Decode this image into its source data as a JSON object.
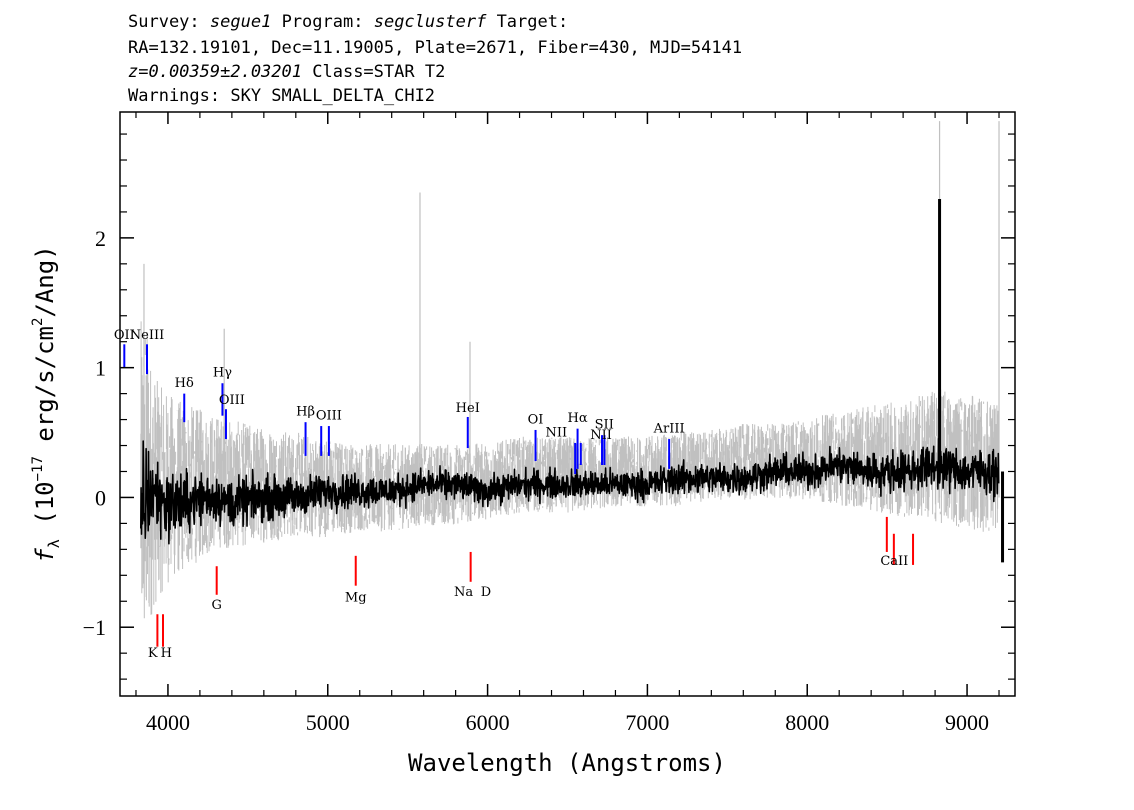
{
  "header": {
    "survey_label": "Survey:",
    "survey": "segue1",
    "program_label": "Program:",
    "program": "segclusterf",
    "target_label": "Target:",
    "line2": "RA=132.19101, Dec=11.19005, Plate=2671, Fiber=430, MJD=54141",
    "redshift": "z=0.00359±2.03201",
    "class": "Class=STAR T2",
    "warnings": "Warnings: SKY SMALL_DELTA_CHI2"
  },
  "chart_data": {
    "type": "line",
    "xlabel": "Wavelength (Angstroms)",
    "ylabel": "f_λ (10^-17 erg/s/cm^2/Ang)",
    "xlim": [
      3700,
      9300
    ],
    "ylim": [
      -1.53,
      2.97
    ],
    "xticks": [
      4000,
      5000,
      6000,
      7000,
      8000,
      9000
    ],
    "yticks": [
      -1,
      0,
      1,
      2
    ],
    "xtick_labels": [
      "4000",
      "5000",
      "6000",
      "7000",
      "8000",
      "9000"
    ],
    "ytick_labels": [
      "−1",
      "0",
      "1",
      "2"
    ],
    "series": [
      {
        "role": "error band",
        "color": "#c0c0c0",
        "x": [
          3830,
          3860,
          3900,
          3950,
          4000,
          4100,
          4200,
          4300,
          4400,
          4600,
          4800,
          5000,
          5200,
          5400,
          5600,
          5800,
          6000,
          6200,
          6400,
          6600,
          6800,
          7000,
          7200,
          7400,
          7600,
          7800,
          8000,
          8200,
          8400,
          8600,
          8800,
          9000,
          9200
        ],
        "y_low": [
          -1.3,
          -1.4,
          -1.0,
          -0.85,
          -0.75,
          -0.65,
          -0.55,
          -0.45,
          -0.45,
          -0.4,
          -0.35,
          -0.35,
          -0.3,
          -0.3,
          -0.25,
          -0.25,
          -0.2,
          -0.15,
          -0.15,
          -0.15,
          -0.1,
          -0.1,
          -0.1,
          -0.05,
          -0.05,
          -0.05,
          -0.05,
          -0.1,
          -0.15,
          -0.2,
          -0.25,
          -0.3,
          -0.35
        ],
        "y_high": [
          1.5,
          1.6,
          1.1,
          0.95,
          0.9,
          0.8,
          0.75,
          0.7,
          0.65,
          0.6,
          0.55,
          0.5,
          0.45,
          0.45,
          0.45,
          0.45,
          0.45,
          0.5,
          0.5,
          0.5,
          0.5,
          0.5,
          0.55,
          0.55,
          0.6,
          0.6,
          0.65,
          0.7,
          0.75,
          0.8,
          0.9,
          0.85,
          0.8
        ]
      },
      {
        "role": "flux",
        "color": "#000000",
        "x": [
          3830,
          3860,
          3900,
          3950,
          4000,
          4100,
          4200,
          4300,
          4400,
          4600,
          4800,
          5000,
          5200,
          5400,
          5600,
          5800,
          6000,
          6200,
          6400,
          6600,
          6800,
          7000,
          7200,
          7400,
          7600,
          7800,
          8000,
          8200,
          8400,
          8600,
          8800,
          9000,
          9200
        ],
        "y": [
          -0.1,
          0.0,
          0.05,
          0.0,
          -0.05,
          -0.05,
          0.0,
          0.0,
          -0.05,
          0.0,
          0.0,
          0.05,
          0.05,
          0.05,
          0.1,
          0.1,
          0.05,
          0.1,
          0.1,
          0.1,
          0.1,
          0.1,
          0.15,
          0.15,
          0.15,
          0.2,
          0.2,
          0.25,
          0.2,
          0.2,
          0.25,
          0.2,
          0.2
        ],
        "noise": [
          0.45,
          0.55,
          0.35,
          0.3,
          0.3,
          0.25,
          0.22,
          0.2,
          0.2,
          0.18,
          0.16,
          0.15,
          0.14,
          0.13,
          0.12,
          0.12,
          0.12,
          0.12,
          0.12,
          0.12,
          0.12,
          0.12,
          0.13,
          0.13,
          0.13,
          0.13,
          0.14,
          0.15,
          0.16,
          0.17,
          0.18,
          0.18,
          0.2
        ]
      }
    ],
    "spikes": [
      {
        "x": 3850,
        "y": 1.8,
        "series": "error band"
      },
      {
        "x": 4352,
        "y": 1.3,
        "series": "error band"
      },
      {
        "x": 5577,
        "y": 2.35,
        "series": "error band"
      },
      {
        "x": 5890,
        "y": 1.2,
        "series": "error band"
      },
      {
        "x": 8828,
        "y": 2.9,
        "series": "error band"
      },
      {
        "x": 9200,
        "y": 2.9,
        "series": "error band"
      },
      {
        "x": 8828,
        "y": 2.3,
        "series": "flux"
      },
      {
        "x": 9222,
        "y": -0.5,
        "series": "flux"
      }
    ],
    "emission_lines": [
      {
        "label": "OII",
        "x": 3727,
        "y_bottom": 1.0,
        "y_top": 1.18
      },
      {
        "label": "NeIII",
        "x": 3869,
        "y_bottom": 0.95,
        "y_top": 1.18
      },
      {
        "label": "Hδ",
        "x": 4102,
        "y_bottom": 0.58,
        "y_top": 0.8
      },
      {
        "label": "Hγ",
        "x": 4341,
        "y_bottom": 0.63,
        "y_top": 0.88
      },
      {
        "label": "OIII",
        "x": 4363,
        "y_bottom": 0.45,
        "y_top": 0.68
      },
      {
        "label": "Hβ",
        "x": 4861,
        "y_bottom": 0.32,
        "y_top": 0.58
      },
      {
        "label": "OIII",
        "x": 4959,
        "y_bottom": 0.32,
        "y_top": 0.55
      },
      {
        "label": "OIII",
        "x": 5007,
        "y_bottom": 0.32,
        "y_top": 0.55
      },
      {
        "label": "HeI",
        "x": 5876,
        "y_bottom": 0.38,
        "y_top": 0.62
      },
      {
        "label": "OI",
        "x": 6300,
        "y_bottom": 0.28,
        "y_top": 0.52
      },
      {
        "label": "NII",
        "x": 6548,
        "y_bottom": 0.18,
        "y_top": 0.42
      },
      {
        "label": "Hα",
        "x": 6563,
        "y_bottom": 0.22,
        "y_top": 0.53
      },
      {
        "label": "NII",
        "x": 6583,
        "y_bottom": 0.25,
        "y_top": 0.42
      },
      {
        "label": "SII",
        "x": 6716,
        "y_bottom": 0.25,
        "y_top": 0.48
      },
      {
        "label": "SII",
        "x": 6731,
        "y_bottom": 0.25,
        "y_top": 0.48
      },
      {
        "label": "ArIII",
        "x": 7136,
        "y_bottom": 0.22,
        "y_top": 0.45
      }
    ],
    "absorption_lines": [
      {
        "label": "K",
        "x": 3934,
        "y_bottom": -1.15,
        "y_top": -0.9
      },
      {
        "label": "H",
        "x": 3969,
        "y_bottom": -1.15,
        "y_top": -0.9
      },
      {
        "label": "G",
        "x": 4305,
        "y_bottom": -0.75,
        "y_top": -0.53
      },
      {
        "label": "Mg",
        "x": 5175,
        "y_bottom": -0.68,
        "y_top": -0.45
      },
      {
        "label": "Na",
        "x": 5894,
        "y_bottom": -0.65,
        "y_top": -0.42
      },
      {
        "label": "CaII",
        "x": 8498,
        "y_bottom": -0.42,
        "y_top": -0.15
      },
      {
        "label": "CaII",
        "x": 8542,
        "y_bottom": -0.52,
        "y_top": -0.28
      },
      {
        "label": "CaII",
        "x": 8662,
        "y_bottom": -0.52,
        "y_top": -0.28
      }
    ],
    "line_labels_printed": [
      {
        "text": "OII",
        "x": 3727,
        "y": 1.22
      },
      {
        "text": "NeIII",
        "x": 3869,
        "y": 1.22
      },
      {
        "text": "Hδ",
        "x": 4102,
        "y": 0.85
      },
      {
        "text": "Hγ",
        "x": 4341,
        "y": 0.93
      },
      {
        "text": "OIII",
        "x": 4400,
        "y": 0.72
      },
      {
        "text": "Hβ",
        "x": 4861,
        "y": 0.63
      },
      {
        "text": "OIII",
        "x": 5007,
        "y": 0.6
      },
      {
        "text": "HeI",
        "x": 5876,
        "y": 0.66
      },
      {
        "text": "OI",
        "x": 6300,
        "y": 0.57
      },
      {
        "text": "NII",
        "x": 6430,
        "y": 0.47
      },
      {
        "text": "Hα",
        "x": 6563,
        "y": 0.58
      },
      {
        "text": "NII",
        "x": 6710,
        "y": 0.45
      },
      {
        "text": "SII",
        "x": 6730,
        "y": 0.53
      },
      {
        "text": "ArIII",
        "x": 7136,
        "y": 0.5
      },
      {
        "text": "K",
        "x": 3905,
        "y": -1.23
      },
      {
        "text": "H",
        "x": 3990,
        "y": -1.23
      },
      {
        "text": "G",
        "x": 4305,
        "y": -0.86
      },
      {
        "text": "Mg",
        "x": 5175,
        "y": -0.8
      },
      {
        "text": "Na",
        "x": 5850,
        "y": -0.76
      },
      {
        "text": "D",
        "x": 5990,
        "y": -0.76
      },
      {
        "text": "CaII",
        "x": 8545,
        "y": -0.52
      }
    ],
    "colors": {
      "emission": "#0000ff",
      "absorption": "#ff0000",
      "flux": "#000000",
      "error": "#c0c0c0"
    }
  }
}
